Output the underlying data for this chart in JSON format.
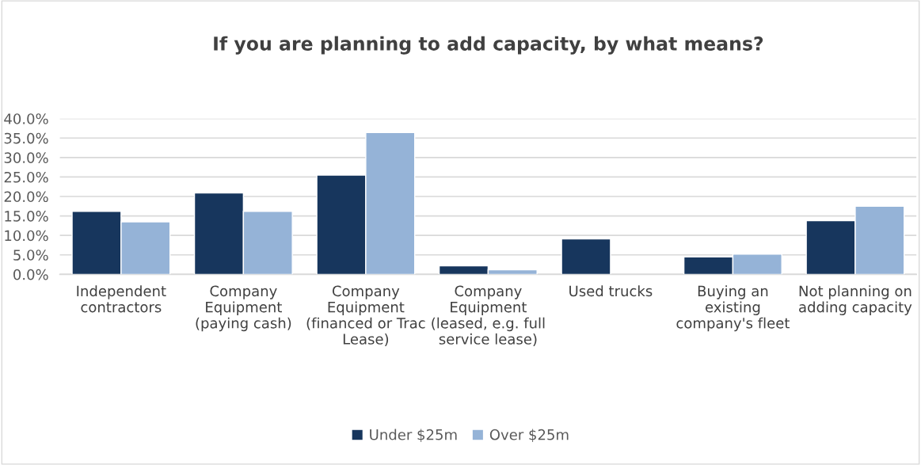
{
  "chart_data": {
    "type": "bar",
    "title": "If you are planning to add capacity, by what means?",
    "categories": [
      "Independent contractors",
      "Company Equipment (paying cash)",
      "Company Equipment (financed or Trac Lease)",
      "Company Equipment (leased, e.g. full service lease)",
      "Used trucks",
      "Buying an existing company's fleet",
      "Not planning on adding capacity"
    ],
    "series": [
      {
        "name": "Under $25m",
        "color": "#17365d",
        "values": [
          16.2,
          20.9,
          25.5,
          2.2,
          9.1,
          4.5,
          13.8
        ]
      },
      {
        "name": "Over $25m",
        "color": "#95b3d7",
        "values": [
          13.5,
          16.2,
          36.4,
          1.2,
          null,
          5.2,
          17.5
        ]
      }
    ],
    "ylim": [
      0,
      40
    ],
    "yticks": [
      {
        "value": 0,
        "label": "0.0%"
      },
      {
        "value": 5,
        "label": "5.0%"
      },
      {
        "value": 10,
        "label": "10.0%"
      },
      {
        "value": 15,
        "label": "15.0%"
      },
      {
        "value": 20,
        "label": "20.0%"
      },
      {
        "value": 25,
        "label": "25.0%"
      },
      {
        "value": 30,
        "label": "30.0%"
      },
      {
        "value": 35,
        "label": "35.0%"
      },
      {
        "value": 40,
        "label": "40.0%"
      }
    ],
    "grid": "y",
    "legend": "bottom"
  }
}
